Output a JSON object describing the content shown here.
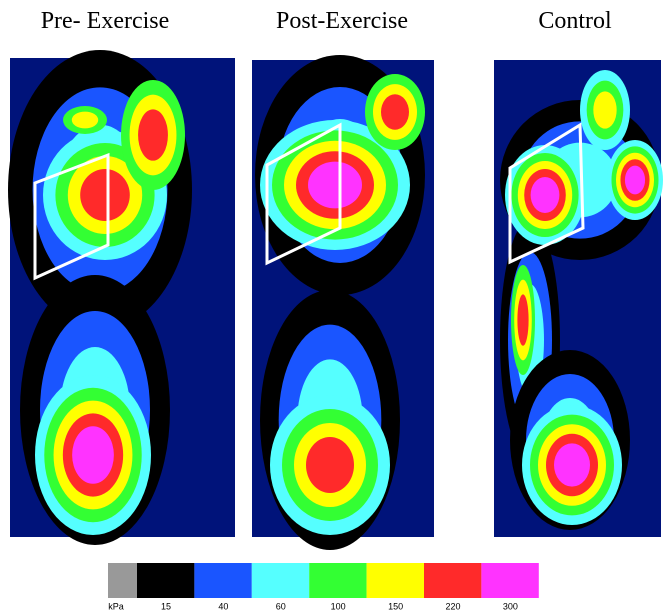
{
  "panels": [
    {
      "title": "Pre- Exercise"
    },
    {
      "title": "Post-Exercise"
    },
    {
      "title": "Control"
    }
  ],
  "colorbar": {
    "unit": "kPa",
    "ticks": [
      15,
      40,
      60,
      100,
      150,
      220,
      300
    ],
    "colors": [
      "#000000",
      "#1a55ff",
      "#55ffff",
      "#33ff33",
      "#ffff00",
      "#ff2a2a",
      "#ff33ff"
    ]
  }
}
